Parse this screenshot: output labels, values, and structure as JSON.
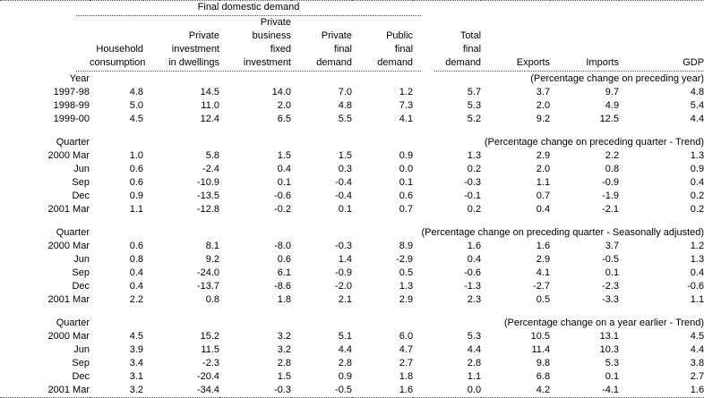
{
  "table": {
    "group_header": "Final domestic demand",
    "columns": [
      "Household\nconsumption",
      "Private\ninvestment\nin dwellings",
      "Private\nbusiness\nfixed\ninvestment",
      "Private\nfinal\ndemand",
      "Public\nfinal\ndemand",
      "Total\nfinal\ndemand",
      "Exports",
      "Imports",
      "GDP"
    ],
    "sections": [
      {
        "label": "Year",
        "note": "(Percentage change on preceding year)",
        "rows": [
          {
            "label": "1997-98",
            "values": [
              "4.8",
              "14.5",
              "14.0",
              "7.0",
              "1.2",
              "5.7",
              "3.7",
              "9.7",
              "4.8"
            ]
          },
          {
            "label": "1998-99",
            "values": [
              "5.0",
              "11.0",
              "2.0",
              "4.8",
              "7.3",
              "5.3",
              "2.0",
              "4.9",
              "5.4"
            ]
          },
          {
            "label": "1999-00",
            "values": [
              "4.5",
              "12.4",
              "6.5",
              "5.5",
              "4.1",
              "5.2",
              "9.2",
              "12.5",
              "4.4"
            ]
          }
        ]
      },
      {
        "label": "Quarter",
        "note": "(Percentage change on preceding quarter - Trend)",
        "rows": [
          {
            "label": "2000 Mar",
            "values": [
              "1.0",
              "5.8",
              "1.5",
              "1.5",
              "0.9",
              "1.3",
              "2.9",
              "2.2",
              "1.3"
            ]
          },
          {
            "label": "Jun",
            "values": [
              "0.6",
              "-2.4",
              "0.4",
              "0.3",
              "0.0",
              "0.2",
              "2.0",
              "0.8",
              "0.9"
            ]
          },
          {
            "label": "Sep",
            "values": [
              "0.6",
              "-10.9",
              "0.1",
              "-0.4",
              "0.1",
              "-0.3",
              "1.1",
              "-0.9",
              "0.4"
            ]
          },
          {
            "label": "Dec",
            "values": [
              "0.9",
              "-13.5",
              "-0.6",
              "-0.4",
              "0.6",
              "-0.1",
              "0.7",
              "-1.9",
              "0.2"
            ]
          },
          {
            "label": "2001 Mar",
            "values": [
              "1.1",
              "-12.8",
              "-0.2",
              "0.1",
              "0.7",
              "0.2",
              "0.4",
              "-2.1",
              "0.2"
            ]
          }
        ]
      },
      {
        "label": "Quarter",
        "note": "(Percentage change on preceding quarter - Seasonally adjusted)",
        "rows": [
          {
            "label": "2000 Mar",
            "values": [
              "0.6",
              "8.1",
              "-8.0",
              "-0.3",
              "8.9",
              "1.6",
              "1.6",
              "3.7",
              "1.2"
            ]
          },
          {
            "label": "Jun",
            "values": [
              "0.8",
              "9.2",
              "0.6",
              "1.4",
              "-2.9",
              "0.4",
              "2.9",
              "-0.5",
              "1.3"
            ]
          },
          {
            "label": "Sep",
            "values": [
              "0.4",
              "-24.0",
              "6.1",
              "-0.9",
              "0.5",
              "-0.6",
              "4.1",
              "0.1",
              "0.4"
            ]
          },
          {
            "label": "Dec",
            "values": [
              "0.4",
              "-13.7",
              "-8.6",
              "-2.0",
              "1.3",
              "-1.3",
              "-2.7",
              "-2.3",
              "-0.6"
            ]
          },
          {
            "label": "2001 Mar",
            "values": [
              "2.2",
              "0.8",
              "1.8",
              "2.1",
              "2.9",
              "2.3",
              "0.5",
              "-3.3",
              "1.1"
            ]
          }
        ]
      },
      {
        "label": "Quarter",
        "note": "(Percentage change on a year earlier - Trend)",
        "rows": [
          {
            "label": "2000 Mar",
            "values": [
              "4.5",
              "15.2",
              "3.2",
              "5.1",
              "6.0",
              "5.3",
              "10.5",
              "13.1",
              "4.5"
            ]
          },
          {
            "label": "Jun",
            "values": [
              "3.9",
              "11.5",
              "3.2",
              "4.4",
              "4.7",
              "4.4",
              "11.4",
              "10.3",
              "4.4"
            ]
          },
          {
            "label": "Sep",
            "values": [
              "3.4",
              "-2.3",
              "2.8",
              "2.8",
              "2.7",
              "2.8",
              "9.8",
              "5.3",
              "3.8"
            ]
          },
          {
            "label": "Dec",
            "values": [
              "3.1",
              "-20.4",
              "1.5",
              "0.9",
              "1.8",
              "1.1",
              "6.8",
              "0.1",
              "2.7"
            ]
          },
          {
            "label": "2001 Mar",
            "values": [
              "3.2",
              "-34.4",
              "-0.3",
              "-0.5",
              "1.6",
              "0.0",
              "4.2",
              "-4.1",
              "1.6"
            ]
          }
        ]
      }
    ]
  },
  "colors": {
    "text": "#000000",
    "rule": "#555555",
    "background": "#ffffff"
  }
}
